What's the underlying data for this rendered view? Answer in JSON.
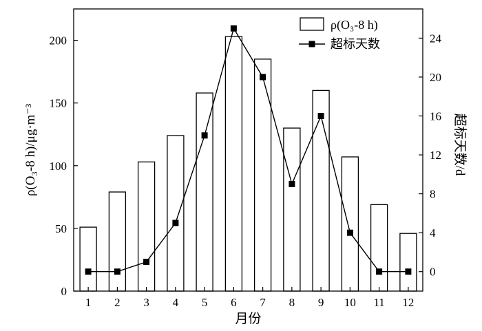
{
  "chart_data": {
    "type": "bar+line",
    "categories": [
      "1",
      "2",
      "3",
      "4",
      "5",
      "6",
      "7",
      "8",
      "9",
      "10",
      "11",
      "12"
    ],
    "series": [
      {
        "name": "ρ(O₃-8 h)",
        "type": "bar",
        "axis": "left",
        "values": [
          51,
          79,
          103,
          124,
          158,
          203,
          185,
          130,
          160,
          107,
          69,
          46
        ]
      },
      {
        "name": "超标天数",
        "type": "line",
        "axis": "right",
        "marker": "square",
        "values": [
          0,
          0,
          1,
          5,
          14,
          25,
          20,
          9,
          16,
          4,
          0,
          0
        ]
      }
    ],
    "xlabel": "月份",
    "ylabel_left": "ρ(O₃-8 h)/μg·m⁻³",
    "ylabel_right": "超标天数/d",
    "ylim_left": [
      0,
      225
    ],
    "ylim_right": [
      -2,
      27
    ],
    "yticks_left": [
      "0",
      "50",
      "100",
      "150",
      "200"
    ],
    "yticks_right": [
      "0",
      "4",
      "8",
      "12",
      "16",
      "20",
      "24"
    ],
    "legend": {
      "placement": "top-right"
    },
    "colors": {
      "bar_fill": "#ffffff",
      "bar_stroke": "#000000",
      "line": "#000000",
      "marker": "#000000"
    }
  }
}
